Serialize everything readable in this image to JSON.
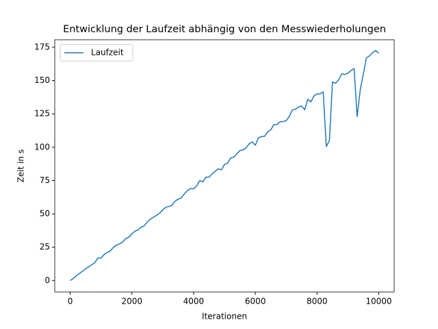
{
  "chart_data": {
    "type": "line",
    "title": "Entwicklung der Laufzeit abhängig von den Messwiederholungen",
    "xlabel": "Iterationen",
    "ylabel": "Zeit in s",
    "x": [
      0,
      100,
      200,
      300,
      400,
      500,
      600,
      700,
      800,
      900,
      1000,
      1100,
      1200,
      1300,
      1400,
      1500,
      1600,
      1700,
      1800,
      1900,
      2000,
      2100,
      2200,
      2300,
      2400,
      2500,
      2600,
      2700,
      2800,
      2900,
      3000,
      3100,
      3200,
      3300,
      3400,
      3500,
      3600,
      3700,
      3800,
      3900,
      4000,
      4100,
      4200,
      4300,
      4400,
      4500,
      4600,
      4700,
      4800,
      4900,
      5000,
      5100,
      5200,
      5300,
      5400,
      5500,
      5600,
      5700,
      5800,
      5900,
      6000,
      6100,
      6200,
      6300,
      6400,
      6500,
      6600,
      6700,
      6800,
      6900,
      7000,
      7100,
      7200,
      7300,
      7400,
      7500,
      7600,
      7700,
      7800,
      7900,
      8000,
      8100,
      8200,
      8300,
      8400,
      8500,
      8600,
      8700,
      8800,
      8900,
      9000,
      9100,
      9200,
      9300,
      9400,
      9500,
      9600,
      9700,
      9800,
      9900,
      10000
    ],
    "series": [
      {
        "name": "Laufzeit",
        "color": "#1f77b4",
        "values": [
          0,
          1.5,
          3.5,
          5.3,
          7,
          8.8,
          10.3,
          11.8,
          13.5,
          17,
          16.7,
          19.5,
          21,
          22.2,
          24.8,
          26.5,
          27.5,
          28.8,
          31.5,
          32.5,
          35,
          37,
          38,
          40,
          41,
          44,
          46,
          47.5,
          49,
          50.5,
          53,
          55,
          55.5,
          56.5,
          59.5,
          61,
          62,
          65,
          67.5,
          69,
          68.7,
          71,
          75,
          74,
          77.5,
          77.5,
          80,
          82,
          83.8,
          83,
          87,
          88,
          92,
          92.5,
          95,
          97.5,
          98,
          99.5,
          102.5,
          104,
          101.5,
          107,
          108,
          108.2,
          111.5,
          113,
          117,
          117,
          119,
          119.2,
          120,
          123,
          128,
          128.5,
          130,
          131,
          128,
          136,
          134,
          138.5,
          140,
          140,
          141.5,
          100.5,
          105,
          149,
          148,
          150.5,
          155,
          154.5,
          155.5,
          157.5,
          159,
          123,
          143,
          155,
          167,
          168.5,
          171,
          172.5,
          170.5
        ]
      }
    ],
    "xlim": [
      -500,
      10500
    ],
    "ylim": [
      -8.6,
      180.6
    ],
    "xticks": [
      0,
      2000,
      4000,
      6000,
      8000,
      10000
    ],
    "yticks": [
      0,
      25,
      50,
      75,
      100,
      125,
      150,
      175
    ],
    "grid": false,
    "legend": "upper-left"
  }
}
